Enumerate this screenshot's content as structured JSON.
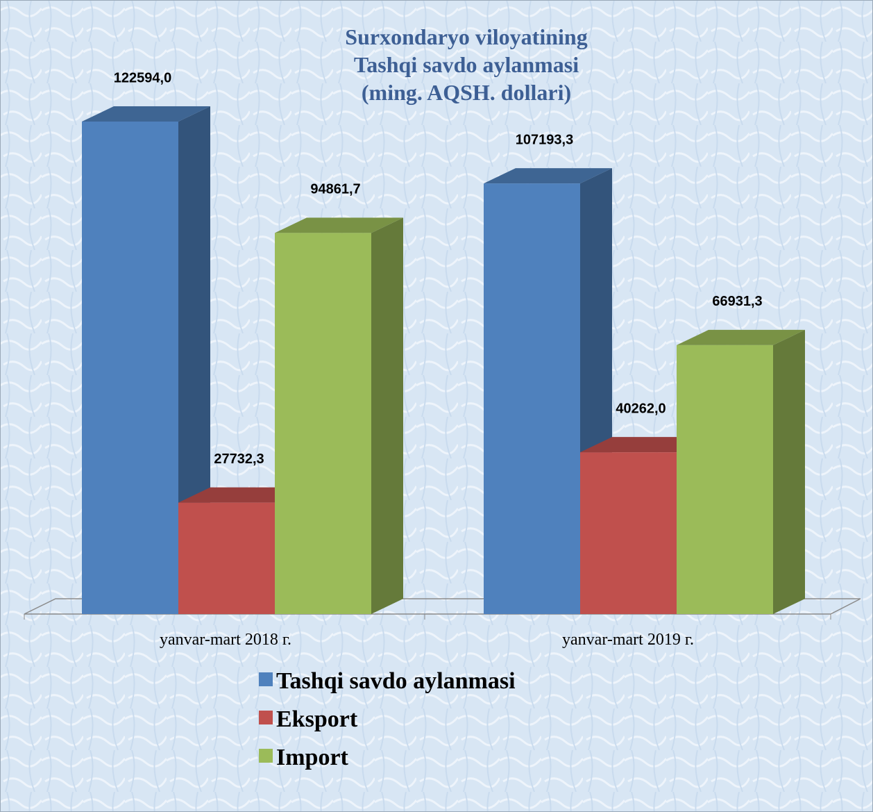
{
  "chart_data": {
    "type": "bar3d",
    "title": [
      "Surxondaryo viloyatining",
      "Tashqi savdo aylanmasi",
      "(ming. AQSH. dollari)"
    ],
    "categories": [
      "yanvar-mart 2018 г.",
      "yanvar-mart 2019 г."
    ],
    "series": [
      {
        "name": "Tashqi savdo aylanmasi",
        "color": "#4f81bd",
        "values": [
          122594.0,
          107193.3
        ],
        "value_labels": [
          "122594,0",
          "107193,3"
        ]
      },
      {
        "name": "Eksport",
        "color": "#c0504d",
        "values": [
          27732.3,
          40262.0
        ],
        "value_labels": [
          "27732,3",
          "40262,0"
        ]
      },
      {
        "name": "Import",
        "color": "#9bbb59",
        "values": [
          94861.7,
          66931.3
        ],
        "value_labels": [
          "94861,7",
          "66931,3"
        ]
      }
    ]
  }
}
